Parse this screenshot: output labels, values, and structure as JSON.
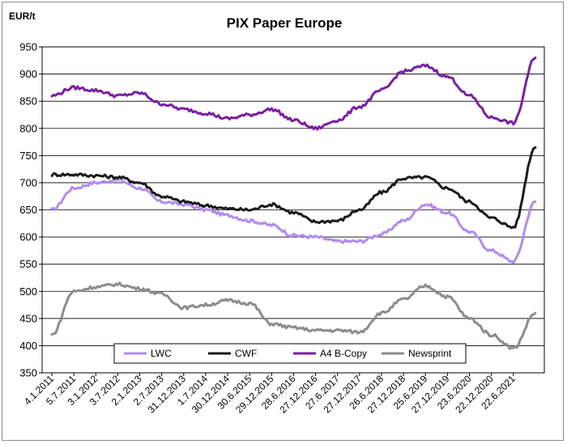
{
  "chart_data": {
    "type": "line",
    "title": "PIX Paper Europe",
    "ylabel": "EUR/t",
    "xlabel": "",
    "ylim": [
      350,
      950
    ],
    "yticks": [
      350,
      400,
      450,
      500,
      550,
      600,
      650,
      700,
      750,
      800,
      850,
      900,
      950
    ],
    "x_tick_labels": [
      "4.1.2011",
      "5.7.2011",
      "3.1.2012",
      "3.7.2012",
      "2.1.2013",
      "2.7.2013",
      "31.12.2013",
      "1.7.2014",
      "30.12.2014",
      "30.6.2015",
      "29.12.2015",
      "28.6.2016",
      "27.12.2016",
      "27.6.2017",
      "27.12.2017",
      "26.6.2018",
      "27.12.2018",
      "25.6.2019",
      "27.12.2019",
      "23.6.2020",
      "22.12.2020",
      "22.6.2021"
    ],
    "grid": true,
    "legend_position": "bottom",
    "x": [
      "4.1.2011",
      "5.7.2011",
      "3.1.2012",
      "3.7.2012",
      "2.1.2013",
      "2.7.2013",
      "31.12.2013",
      "1.7.2014",
      "30.12.2014",
      "30.6.2015",
      "29.12.2015",
      "28.6.2016",
      "27.12.2016",
      "27.6.2017",
      "27.12.2017",
      "26.6.2018",
      "27.12.2018",
      "25.6.2019",
      "27.12.2019",
      "23.6.2020",
      "22.12.2020",
      "22.6.2021",
      "9.11.2021"
    ],
    "series": [
      {
        "name": "LWC",
        "color": "#b08cf0",
        "values": [
          650,
          690,
          700,
          705,
          690,
          665,
          660,
          650,
          640,
          630,
          622,
          603,
          600,
          592,
          592,
          605,
          630,
          660,
          645,
          610,
          575,
          555,
          665
        ]
      },
      {
        "name": "CWF",
        "color": "#1a1a1a",
        "values": [
          715,
          715,
          713,
          710,
          700,
          675,
          665,
          658,
          652,
          650,
          660,
          645,
          628,
          630,
          650,
          682,
          708,
          710,
          690,
          665,
          635,
          618,
          765
        ]
      },
      {
        "name": "A4 B-Copy",
        "color": "#7a1fa2",
        "values": [
          860,
          875,
          870,
          860,
          865,
          845,
          835,
          828,
          818,
          825,
          835,
          815,
          800,
          815,
          840,
          870,
          905,
          915,
          895,
          860,
          820,
          810,
          930
        ]
      },
      {
        "name": "Newsprint",
        "color": "#8c8c8c",
        "values": [
          420,
          500,
          508,
          513,
          505,
          495,
          470,
          475,
          483,
          478,
          440,
          433,
          428,
          428,
          425,
          460,
          485,
          510,
          490,
          450,
          420,
          395,
          460
        ]
      }
    ]
  }
}
